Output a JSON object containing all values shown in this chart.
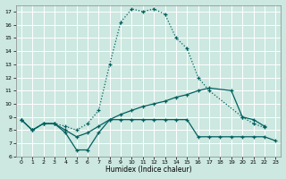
{
  "xlabel": "Humidex (Indice chaleur)",
  "bg_color": "#cce8e0",
  "grid_color": "#ffffff",
  "line_color": "#006060",
  "xlim": [
    -0.5,
    23.5
  ],
  "ylim": [
    6,
    17.5
  ],
  "xticks": [
    0,
    1,
    2,
    3,
    4,
    5,
    6,
    7,
    8,
    9,
    10,
    11,
    12,
    13,
    14,
    15,
    16,
    17,
    18,
    19,
    20,
    21,
    22,
    23
  ],
  "yticks": [
    6,
    7,
    8,
    9,
    10,
    11,
    12,
    13,
    14,
    15,
    16,
    17
  ],
  "line_dotted_x": [
    0,
    1,
    2,
    3,
    4,
    5,
    6,
    7,
    8,
    9,
    10,
    11,
    12,
    13,
    14,
    15,
    16,
    17,
    20,
    21,
    22
  ],
  "line_dotted_y": [
    8.8,
    8.0,
    8.5,
    8.5,
    8.3,
    8.0,
    8.5,
    9.5,
    13.0,
    16.2,
    17.2,
    17.0,
    17.2,
    16.8,
    15.0,
    14.2,
    12.0,
    11.0,
    9.0,
    8.5,
    8.2
  ],
  "line_low_x": [
    0,
    1,
    2,
    3,
    4,
    5,
    6,
    7,
    8,
    9,
    10,
    11,
    12,
    13,
    14,
    15,
    16,
    17,
    18,
    19,
    20,
    21,
    22,
    23
  ],
  "line_low_y": [
    8.8,
    8.0,
    8.5,
    8.5,
    7.8,
    6.5,
    6.5,
    7.8,
    8.8,
    8.8,
    8.8,
    8.8,
    8.8,
    8.8,
    8.8,
    8.8,
    7.5,
    7.5,
    7.5,
    7.5,
    7.5,
    7.5,
    7.5,
    7.2
  ],
  "line_diag_x": [
    0,
    1,
    2,
    3,
    4,
    5,
    6,
    7,
    8,
    9,
    10,
    11,
    12,
    13,
    14,
    15,
    16,
    17,
    19,
    20,
    21,
    22
  ],
  "line_diag_y": [
    8.8,
    8.0,
    8.5,
    8.5,
    8.0,
    7.5,
    7.8,
    8.3,
    8.8,
    9.2,
    9.5,
    9.8,
    10.0,
    10.2,
    10.5,
    10.7,
    11.0,
    11.2,
    11.0,
    9.0,
    8.8,
    8.3
  ]
}
